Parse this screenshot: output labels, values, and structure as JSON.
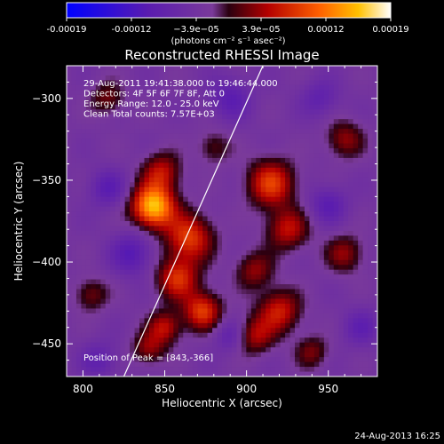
{
  "chart_data": {
    "type": "heatmap",
    "title": "Reconstructed RHESSI Image",
    "xlabel": "Heliocentric X (arcsec)",
    "ylabel": "Heliocentric Y (arcsec)",
    "xlim": [
      790,
      980
    ],
    "ylim": [
      -470,
      -280
    ],
    "x_ticks": [
      800,
      850,
      900,
      950
    ],
    "y_ticks": [
      -300,
      -350,
      -400,
      -450
    ],
    "colorbar": {
      "range": [
        -0.00019,
        0.00019
      ],
      "tick_labels": [
        "-0.00019",
        "-0.00012",
        "−3.9e−05",
        "3.9e−05",
        "0.00012",
        "0.00019"
      ],
      "unit_label": "(photons cm⁻² s⁻¹ asec⁻²)"
    },
    "info_lines": [
      "29-Aug-2011 19:41:38.000 to 19:46:44.000",
      "Detectors: 4F 5F 6F 7F 8F, Att 0",
      "Energy Range: 12.0 - 25.0 keV",
      "Clean     Total counts: 7.57E+03"
    ],
    "peak_label": "Position of Peak = [843,-366]",
    "peak": [
      843,
      -366
    ],
    "limb_line": [
      [
        825,
        -470
      ],
      [
        910,
        -280
      ]
    ],
    "sources": [
      {
        "x": 843,
        "y": -366,
        "amp": 1.0,
        "s": 9
      },
      {
        "x": 848,
        "y": -345,
        "amp": 0.45,
        "s": 8
      },
      {
        "x": 865,
        "y": -385,
        "amp": 0.6,
        "s": 10
      },
      {
        "x": 858,
        "y": -410,
        "amp": 0.55,
        "s": 9
      },
      {
        "x": 873,
        "y": -430,
        "amp": 0.6,
        "s": 8
      },
      {
        "x": 850,
        "y": -440,
        "amp": 0.45,
        "s": 7
      },
      {
        "x": 840,
        "y": -453,
        "amp": 0.35,
        "s": 7
      },
      {
        "x": 915,
        "y": -352,
        "amp": 0.6,
        "s": 10
      },
      {
        "x": 925,
        "y": -380,
        "amp": 0.45,
        "s": 9
      },
      {
        "x": 905,
        "y": -405,
        "amp": 0.35,
        "s": 8
      },
      {
        "x": 920,
        "y": -430,
        "amp": 0.5,
        "s": 9
      },
      {
        "x": 905,
        "y": -445,
        "amp": 0.4,
        "s": 8
      },
      {
        "x": 960,
        "y": -325,
        "amp": 0.35,
        "s": 8
      },
      {
        "x": 960,
        "y": -395,
        "amp": 0.35,
        "s": 8
      },
      {
        "x": 940,
        "y": -455,
        "amp": 0.3,
        "s": 7
      },
      {
        "x": 815,
        "y": -300,
        "amp": 0.3,
        "s": 7
      },
      {
        "x": 805,
        "y": -420,
        "amp": 0.3,
        "s": 7
      },
      {
        "x": 880,
        "y": -330,
        "amp": 0.25,
        "s": 7
      },
      {
        "x": 830,
        "y": -395,
        "amp": -0.35,
        "s": 9
      },
      {
        "x": 815,
        "y": -355,
        "amp": -0.3,
        "s": 8
      },
      {
        "x": 890,
        "y": -300,
        "amp": -0.3,
        "s": 9
      },
      {
        "x": 945,
        "y": -300,
        "amp": -0.25,
        "s": 8
      },
      {
        "x": 950,
        "y": -365,
        "amp": -0.3,
        "s": 8
      },
      {
        "x": 890,
        "y": -445,
        "amp": -0.25,
        "s": 7
      },
      {
        "x": 810,
        "y": -460,
        "amp": -0.25,
        "s": 8
      },
      {
        "x": 970,
        "y": -440,
        "amp": -0.25,
        "s": 8
      }
    ]
  },
  "footer": {
    "timestamp": "24-Aug-2013 16:25"
  }
}
